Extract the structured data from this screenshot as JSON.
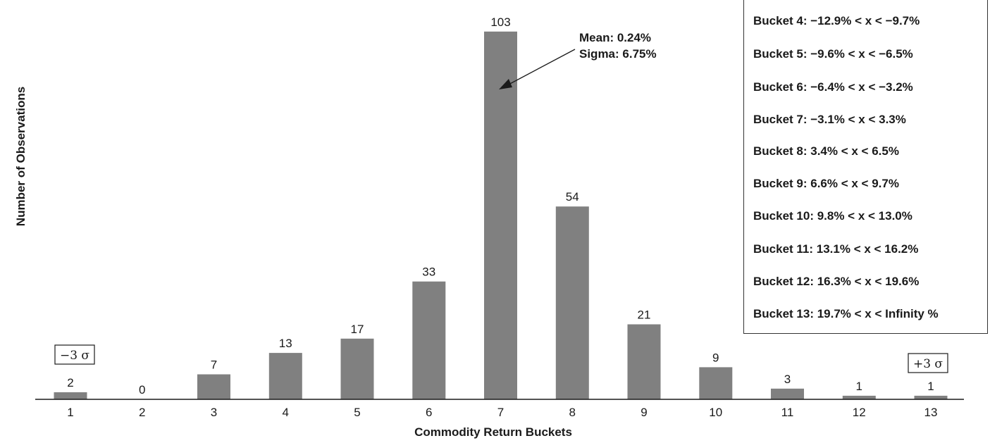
{
  "chart_data": {
    "type": "bar",
    "categories": [
      "1",
      "2",
      "3",
      "4",
      "5",
      "6",
      "7",
      "8",
      "9",
      "10",
      "11",
      "12",
      "13"
    ],
    "values": [
      2,
      0,
      7,
      13,
      17,
      33,
      103,
      54,
      21,
      9,
      3,
      1,
      1
    ],
    "xlabel": "Commodity Return Buckets",
    "ylabel": "Number of Observations",
    "ylim": [
      0,
      110
    ],
    "bar_color": "#808080",
    "grid": false,
    "annotations": {
      "mean": "Mean: 0.24%",
      "sigma": "Sigma: 6.75%",
      "minus_sigma": "−3 σ",
      "plus_sigma": "+3 σ"
    },
    "legend_placement": "top-right",
    "legend": [
      "Bucket 4: −12.9% < x < −9.7%",
      "Bucket 5: −9.6% < x < −6.5%",
      "Bucket 6: −6.4% < x < −3.2%",
      "Bucket 7: −3.1% < x < 3.3%",
      "Bucket 8: 3.4% < x < 6.5%",
      "Bucket 9: 6.6% < x < 9.7%",
      "Bucket 10: 9.8% < x < 13.0%",
      "Bucket 11: 13.1% < x < 16.2%",
      "Bucket 12: 16.3% < x < 19.6%",
      "Bucket 13: 19.7% < x < Infinity %"
    ]
  }
}
